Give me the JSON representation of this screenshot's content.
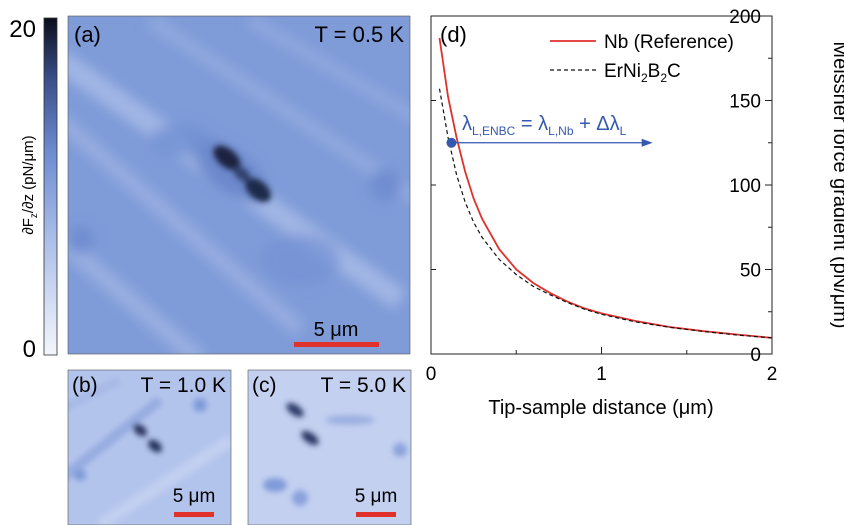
{
  "colorbar": {
    "max_label": "20",
    "min_label": "0",
    "axis_label": "∂F",
    "axis_label_sub": "z",
    "axis_label_rest": "/∂z (pN/μm)",
    "range": [
      0,
      20
    ],
    "color_low": "#f4f6fc",
    "color_high": "#0a0e1c"
  },
  "panels": [
    {
      "id": "a",
      "label": "(a)",
      "temperature": "T = 0.5 K",
      "scalebar": "5 μm"
    },
    {
      "id": "b",
      "label": "(b)",
      "temperature": "T = 1.0 K",
      "scalebar": "5 μm"
    },
    {
      "id": "c",
      "label": "(c)",
      "temperature": "T = 5.0 K",
      "scalebar": "5 μm"
    }
  ],
  "scalebar_color": "#e0312c",
  "map_base_color": "#7f9bd8",
  "chart_data": {
    "type": "line",
    "panel_label": "(d)",
    "xlabel": "Tip-sample distance (μm)",
    "ylabel": "Meissner force gradient (pN/μm)",
    "xlim": [
      0,
      2
    ],
    "ylim": [
      0,
      200
    ],
    "x_ticks": [
      "0",
      "1",
      "2"
    ],
    "y_ticks": [
      "0",
      "50",
      "100",
      "150",
      "200"
    ],
    "y_axis_side": "right",
    "grid": false,
    "legend_position": "top-right",
    "series": [
      {
        "name": "Nb (Reference)",
        "color": "#e0312c",
        "style": "solid",
        "x": [
          0.05,
          0.1,
          0.15,
          0.2,
          0.25,
          0.3,
          0.4,
          0.5,
          0.6,
          0.7,
          0.8,
          0.9,
          1.0,
          1.2,
          1.4,
          1.6,
          1.8,
          2.0
        ],
        "y": [
          187,
          152,
          128,
          108,
          92,
          80,
          62,
          50,
          42,
          36,
          31,
          27,
          24,
          19.5,
          16,
          13.5,
          11.5,
          9.5
        ]
      },
      {
        "name": "ErNi",
        "name_sub1": "2",
        "name_mid": "B",
        "name_sub2": "2",
        "name_end": "C",
        "color": "#111111",
        "style": "dashed",
        "x": [
          0.05,
          0.1,
          0.15,
          0.2,
          0.25,
          0.3,
          0.4,
          0.5,
          0.6,
          0.7,
          0.8,
          0.9,
          1.0,
          1.2,
          1.4,
          1.6,
          1.8,
          2.0
        ],
        "y": [
          157,
          128,
          106,
          90,
          78,
          69,
          56,
          47,
          40,
          35,
          30.5,
          26.5,
          23.5,
          19,
          15.8,
          13.3,
          11.2,
          9.5
        ]
      }
    ],
    "annotation": {
      "lhs": "λ",
      "lhs_sub": "L,ENBC",
      "eq": " = λ",
      "rhs_sub": "L,Nb",
      "plus": " + Δλ",
      "plus_sub": "L",
      "color": "#3558b0",
      "point": {
        "x": 0.12,
        "y": 125
      },
      "arrow_to_x": 1.3
    }
  }
}
